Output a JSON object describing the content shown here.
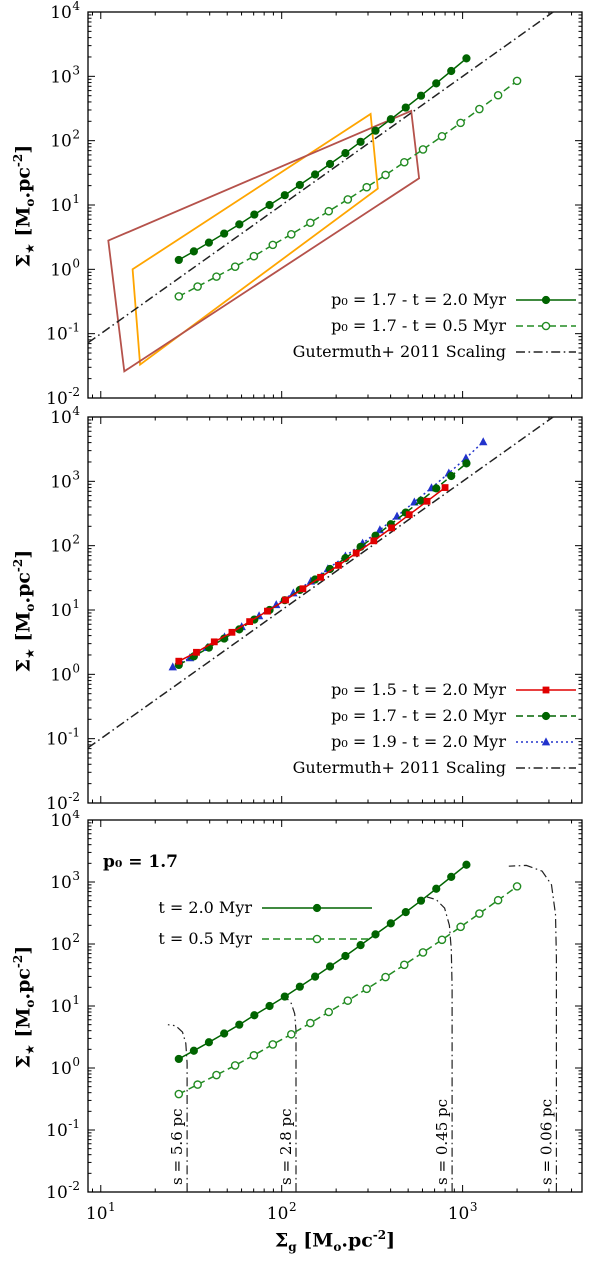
{
  "axes": {
    "y_title": {
      "sigma": "Σ",
      "sub": "★",
      "unit_open": " [M",
      "unit_sub": "o",
      "unit_mid": ".pc",
      "unit_sup": "-2",
      "unit_close": "]"
    },
    "x_title": {
      "sigma": "Σ",
      "sub": "g",
      "unit_open": " [M",
      "unit_sub": "o",
      "unit_mid": ".pc",
      "unit_sup": "-2",
      "unit_close": "]"
    }
  },
  "chart_data": [
    {
      "name": "panel-1",
      "type": "line",
      "xscale": "log",
      "yscale": "log",
      "xlim": [
        8.5,
        4570
      ],
      "ylim": [
        0.01,
        10000
      ],
      "x_tick_exponents": [
        1,
        2,
        3
      ],
      "y_tick_exponents": [
        -2,
        -1,
        0,
        1,
        2,
        3,
        4
      ],
      "grid": false,
      "legend_position": "lower-right",
      "series": [
        {
          "label": "p₀ = 1.7 - t = 2.0 Myr",
          "color": "#006400",
          "line": "solid",
          "marker": "circle-filled",
          "points": [
            [
              27,
              1.4
            ],
            [
              32.7,
              1.9
            ],
            [
              39.6,
              2.6
            ],
            [
              48.1,
              3.6
            ],
            [
              58.3,
              5.0
            ],
            [
              70.6,
              7.1
            ],
            [
              85.7,
              10
            ],
            [
              104,
              14.2
            ],
            [
              126,
              20.5
            ],
            [
              153,
              29.8
            ],
            [
              185,
              43.4
            ],
            [
              225,
              64.1
            ],
            [
              273,
              95.9
            ],
            [
              330,
              143
            ],
            [
              401,
              215
            ],
            [
              485,
              327
            ],
            [
              589,
              500
            ],
            [
              715,
              778
            ],
            [
              865,
              1210
            ],
            [
              1050,
              1900
            ]
          ]
        },
        {
          "label": "p₀ = 1.7 - t = 0.5 Myr",
          "color": "#228B22",
          "line": "dashed",
          "marker": "circle-open",
          "points": [
            [
              27,
              0.38
            ],
            [
              34.3,
              0.54
            ],
            [
              43.6,
              0.77
            ],
            [
              55.3,
              1.1
            ],
            [
              70.2,
              1.6
            ],
            [
              89.3,
              2.4
            ],
            [
              113,
              3.5
            ],
            [
              144,
              5.3
            ],
            [
              182,
              8.0
            ],
            [
              232,
              12.2
            ],
            [
              295,
              18.9
            ],
            [
              375,
              29.3
            ],
            [
              476,
              46.2
            ],
            [
              604,
              73.1
            ],
            [
              769,
              117
            ],
            [
              975,
              189
            ],
            [
              1238,
              310
            ],
            [
              1571,
              508
            ],
            [
              2000,
              850
            ]
          ]
        },
        {
          "label": "Gutermuth+ 2011 Scaling",
          "color": "#222222",
          "line": "dashdot",
          "marker": "none",
          "points": [
            [
              8.5,
              0.072
            ],
            [
              3163,
              10000
            ]
          ]
        }
      ],
      "boxes": [
        {
          "name": "orange-region",
          "color": "#ffa500",
          "points": [
            [
              15,
              1.0
            ],
            [
              310,
              260
            ],
            [
              340,
              18
            ],
            [
              16.5,
              0.033
            ]
          ]
        },
        {
          "name": "dark-red-region",
          "color": "#b5524b",
          "points": [
            [
              11,
              2.8
            ],
            [
              520,
              290
            ],
            [
              575,
              26
            ],
            [
              13.5,
              0.026
            ]
          ]
        }
      ]
    },
    {
      "name": "panel-2",
      "type": "line",
      "xscale": "log",
      "yscale": "log",
      "xlim": [
        8.5,
        4570
      ],
      "ylim": [
        0.01,
        10000
      ],
      "x_tick_exponents": [
        1,
        2,
        3
      ],
      "y_tick_exponents": [
        -2,
        -1,
        0,
        1,
        2,
        3,
        4
      ],
      "grid": false,
      "legend_position": "lower-right",
      "series": [
        {
          "label": "p₀ = 1.5 - t = 2.0 Myr",
          "color": "#e00000",
          "line": "solid",
          "marker": "square-filled",
          "points": [
            [
              27,
              1.6
            ],
            [
              33.8,
              2.2
            ],
            [
              42.4,
              3.2
            ],
            [
              53.1,
              4.5
            ],
            [
              66.5,
              6.6
            ],
            [
              83.4,
              9.6
            ],
            [
              105,
              14.3
            ],
            [
              131,
              21.4
            ],
            [
              164,
              32.2
            ],
            [
              206,
              49.4
            ],
            [
              258,
              76.7
            ],
            [
              323,
              119
            ],
            [
              405,
              189
            ],
            [
              507,
              303
            ],
            [
              636,
              490
            ],
            [
              800,
              800
            ]
          ]
        },
        {
          "label": "p₀ = 1.7 - t = 2.0 Myr",
          "color": "#006400",
          "line": "dashed",
          "marker": "circle-filled",
          "points": [
            [
              27,
              1.4
            ],
            [
              32.7,
              1.9
            ],
            [
              39.6,
              2.6
            ],
            [
              48.1,
              3.6
            ],
            [
              58.3,
              5.0
            ],
            [
              70.6,
              7.1
            ],
            [
              85.7,
              10
            ],
            [
              104,
              14.2
            ],
            [
              126,
              20.5
            ],
            [
              153,
              29.8
            ],
            [
              185,
              43.4
            ],
            [
              225,
              64.1
            ],
            [
              273,
              95.9
            ],
            [
              330,
              143
            ],
            [
              401,
              215
            ],
            [
              485,
              327
            ],
            [
              589,
              500
            ],
            [
              715,
              778
            ],
            [
              865,
              1210
            ],
            [
              1050,
              1900
            ]
          ]
        },
        {
          "label": "p₀ = 1.9 - t = 2.0 Myr",
          "color": "#2233cc",
          "line": "dotted",
          "marker": "triangle-filled",
          "points": [
            [
              25,
              1.3
            ],
            [
              31.1,
              1.8
            ],
            [
              38.8,
              2.6
            ],
            [
              48.3,
              3.8
            ],
            [
              60.1,
              5.5
            ],
            [
              75,
              8.1
            ],
            [
              93.3,
              12.1
            ],
            [
              116,
              18.4
            ],
            [
              145,
              28
            ],
            [
              180,
              43.7
            ],
            [
              225,
              68.9
            ],
            [
              280,
              109
            ],
            [
              349,
              176
            ],
            [
              434,
              287
            ],
            [
              541,
              475
            ],
            [
              673,
              791
            ],
            [
              839,
              1345
            ],
            [
              1043,
              2300
            ],
            [
              1300,
              4100
            ]
          ]
        },
        {
          "label": "Gutermuth+ 2011 Scaling",
          "color": "#222222",
          "line": "dashdot",
          "marker": "none",
          "points": [
            [
              8.5,
              0.072
            ],
            [
              3163,
              10000
            ]
          ]
        }
      ],
      "boxes": []
    },
    {
      "name": "panel-3",
      "type": "line",
      "xscale": "log",
      "yscale": "log",
      "xlim": [
        8.5,
        4570
      ],
      "ylim": [
        0.01,
        10000
      ],
      "x_tick_exponents": [
        1,
        2,
        3
      ],
      "y_tick_exponents": [
        -2,
        -1,
        0,
        1,
        2,
        3,
        4
      ],
      "grid": false,
      "legend_position": "upper-left",
      "annotation": "p₀ = 1.7",
      "series": [
        {
          "label": "t = 2.0 Myr",
          "color": "#006400",
          "line": "solid",
          "marker": "circle-filled",
          "points": [
            [
              27,
              1.4
            ],
            [
              32.7,
              1.9
            ],
            [
              39.6,
              2.6
            ],
            [
              48.1,
              3.6
            ],
            [
              58.3,
              5.0
            ],
            [
              70.6,
              7.1
            ],
            [
              85.7,
              10
            ],
            [
              104,
              14.2
            ],
            [
              126,
              20.5
            ],
            [
              153,
              29.8
            ],
            [
              185,
              43.4
            ],
            [
              225,
              64.1
            ],
            [
              273,
              95.9
            ],
            [
              330,
              143
            ],
            [
              401,
              215
            ],
            [
              485,
              327
            ],
            [
              589,
              500
            ],
            [
              715,
              778
            ],
            [
              865,
              1210
            ],
            [
              1050,
              1900
            ]
          ]
        },
        {
          "label": "t = 0.5 Myr",
          "color": "#228B22",
          "line": "dashed",
          "marker": "circle-open",
          "points": [
            [
              27,
              0.38
            ],
            [
              34.3,
              0.54
            ],
            [
              43.6,
              0.77
            ],
            [
              55.3,
              1.1
            ],
            [
              70.2,
              1.6
            ],
            [
              89.3,
              2.4
            ],
            [
              113,
              3.5
            ],
            [
              144,
              5.3
            ],
            [
              182,
              8.0
            ],
            [
              232,
              12.2
            ],
            [
              295,
              18.9
            ],
            [
              375,
              29.3
            ],
            [
              476,
              46.2
            ],
            [
              604,
              73.1
            ],
            [
              769,
              117
            ],
            [
              975,
              189
            ],
            [
              1238,
              310
            ],
            [
              1571,
              508
            ],
            [
              2000,
              850
            ]
          ]
        }
      ],
      "boxes": [],
      "size_contours": [
        {
          "label": "s = 5.6 pc",
          "color": "#222222",
          "points": [
            [
              30,
              0.01
            ],
            [
              30,
              1.2
            ],
            [
              29.5,
              2.5
            ],
            [
              28.3,
              3.8
            ],
            [
              26,
              4.8
            ],
            [
              23.5,
              5.0
            ]
          ]
        },
        {
          "label": "s = 2.8 pc",
          "color": "#222222",
          "points": [
            [
              120,
              0.01
            ],
            [
              120,
              4
            ],
            [
              118,
              7.5
            ],
            [
              113,
              11
            ],
            [
              105,
              14
            ],
            [
              96,
              15.5
            ]
          ]
        },
        {
          "label": "s = 0.45 pc",
          "color": "#222222",
          "points": [
            [
              875,
              0.01
            ],
            [
              875,
              20
            ],
            [
              866,
              80
            ],
            [
              845,
              200
            ],
            [
              795,
              380
            ],
            [
              715,
              520
            ],
            [
              635,
              575
            ]
          ]
        },
        {
          "label": "s = 0.06 pc",
          "color": "#222222",
          "points": [
            [
              3300,
              0.01
            ],
            [
              3300,
              60
            ],
            [
              3260,
              300
            ],
            [
              3100,
              900
            ],
            [
              2750,
              1500
            ],
            [
              2250,
              1850
            ],
            [
              1800,
              1800
            ]
          ]
        }
      ]
    }
  ]
}
